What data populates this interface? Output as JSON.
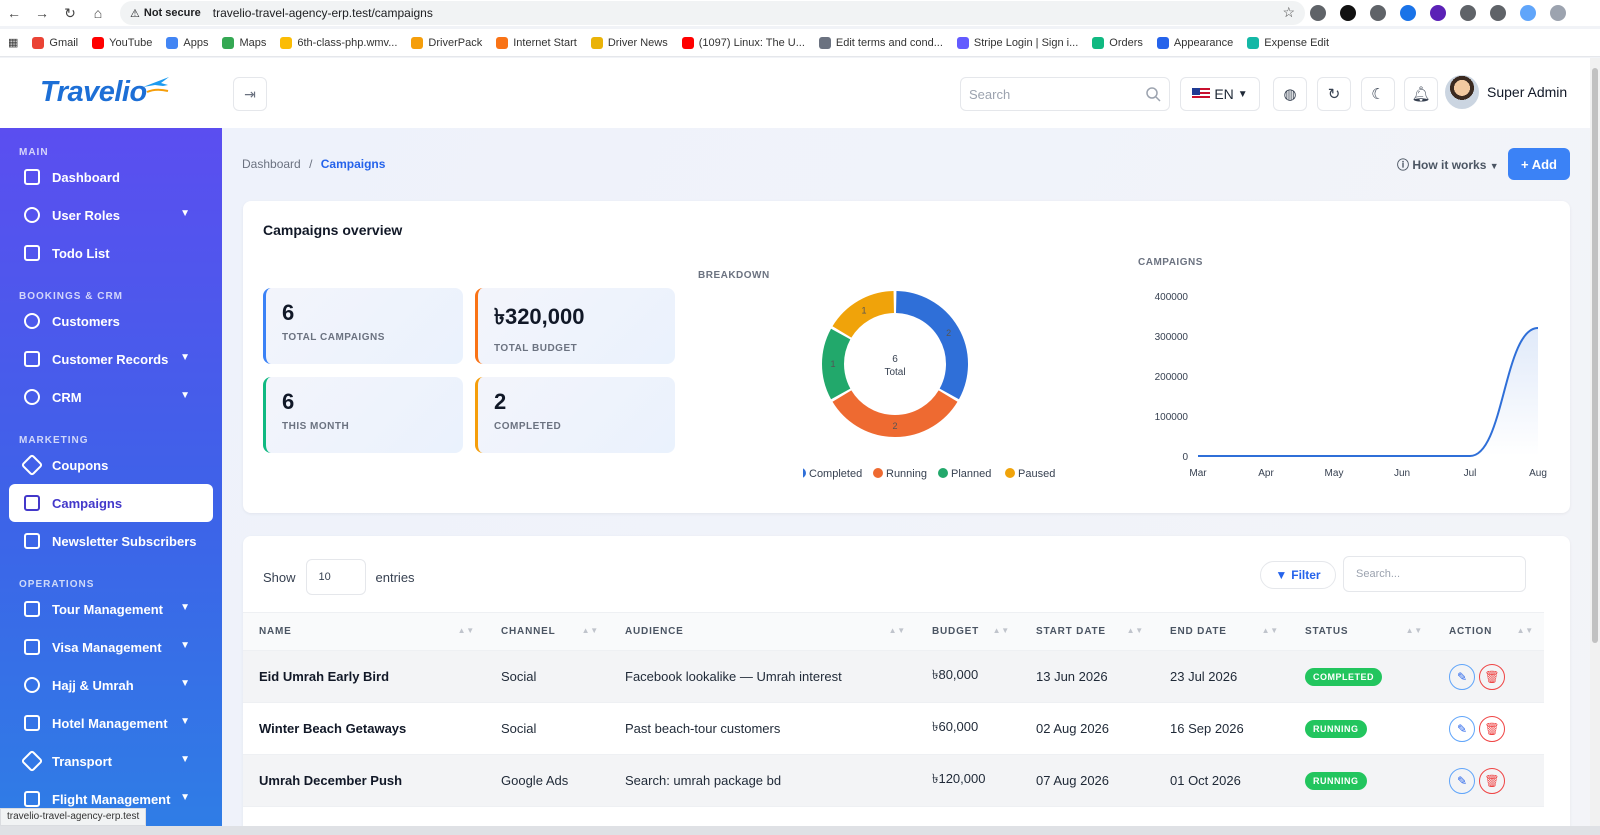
{
  "browser": {
    "security": "Not secure",
    "url": "travelio-travel-agency-erp.test/campaigns",
    "bookmarks": [
      "Gmail",
      "YouTube",
      "Apps",
      "Maps",
      "6th-class-php.wmv...",
      "DriverPack",
      "Internet Start",
      "Driver News",
      "(1097) Linux: The U...",
      "Edit terms and cond...",
      "Stripe Login | Sign i...",
      "Orders",
      "Appearance",
      "Expense Edit"
    ],
    "status_url": "travelio-travel-agency-erp.test"
  },
  "header": {
    "logo": "Travelio",
    "search_placeholder": "Search",
    "lang": "EN",
    "user_name": "Super Admin"
  },
  "sidebar": {
    "sections": [
      {
        "label": "MAIN",
        "items": [
          {
            "label": "Dashboard",
            "icon": "chart-icon",
            "chevron": false
          },
          {
            "label": "User Roles",
            "icon": "user-icon",
            "chevron": true
          },
          {
            "label": "Todo List",
            "icon": "list-icon",
            "chevron": false
          }
        ]
      },
      {
        "label": "BOOKINGS & CRM",
        "items": [
          {
            "label": "Customers",
            "icon": "user-icon",
            "chevron": false
          },
          {
            "label": "Customer Records",
            "icon": "folder-icon",
            "chevron": true
          },
          {
            "label": "CRM",
            "icon": "chat-icon",
            "chevron": true
          }
        ]
      },
      {
        "label": "MARKETING",
        "items": [
          {
            "label": "Coupons",
            "icon": "tag-icon",
            "chevron": false
          },
          {
            "label": "Campaigns",
            "icon": "megaphone-icon",
            "chevron": false,
            "active": true
          },
          {
            "label": "Newsletter Subscribers",
            "icon": "mail-icon",
            "chevron": false
          }
        ]
      },
      {
        "label": "OPERATIONS",
        "items": [
          {
            "label": "Tour Management",
            "icon": "map-icon",
            "chevron": true
          },
          {
            "label": "Visa Management",
            "icon": "document-icon",
            "chevron": true
          },
          {
            "label": "Hajj & Umrah",
            "icon": "compass-icon",
            "chevron": true
          },
          {
            "label": "Hotel Management",
            "icon": "building-icon",
            "chevron": true
          },
          {
            "label": "Transport",
            "icon": "send-icon",
            "chevron": true
          },
          {
            "label": "Flight Management",
            "icon": "plane-icon",
            "chevron": true
          }
        ]
      }
    ]
  },
  "breadcrumb": {
    "home": "Dashboard",
    "sep": "/",
    "current": "Campaigns"
  },
  "actions": {
    "how_it_works": "How it works",
    "add": "+ Add"
  },
  "overview": {
    "title": "Campaigns overview",
    "stats": [
      {
        "value": "6",
        "label": "TOTAL CAMPAIGNS",
        "color": "#3b82f6"
      },
      {
        "value": "৳320,000",
        "label": "TOTAL BUDGET",
        "color": "#f97316"
      },
      {
        "value": "6",
        "label": "THIS MONTH",
        "color": "#10b981"
      },
      {
        "value": "2",
        "label": "COMPLETED",
        "color": "#f59e0b"
      }
    ],
    "breakdown_label": "BREAKDOWN",
    "campaigns_label": "CAMPAIGNS"
  },
  "chart_data": [
    {
      "type": "pie",
      "title": "BREAKDOWN",
      "categories": [
        "Completed",
        "Running",
        "Planned",
        "Paused"
      ],
      "values": [
        2,
        2,
        1,
        1
      ],
      "colors": [
        "#2f6fd8",
        "#ee6a31",
        "#22a86b",
        "#f0a30a"
      ],
      "center_value": "6",
      "center_label": "Total",
      "legend": "bottom"
    },
    {
      "type": "area",
      "title": "CAMPAIGNS",
      "categories": [
        "Mar",
        "Apr",
        "May",
        "Jun",
        "Jul",
        "Aug"
      ],
      "values": [
        0,
        0,
        0,
        0,
        0,
        320000
      ],
      "yticks": [
        0,
        100000,
        200000,
        300000,
        400000
      ],
      "ylim": [
        0,
        400000
      ],
      "color": "#2f6fd8",
      "grid": false
    }
  ],
  "table": {
    "show_label": "Show",
    "entries_value": "10",
    "entries_label": "entries",
    "filter_label": "Filter",
    "search_placeholder": "Search...",
    "columns": [
      "NAME",
      "CHANNEL",
      "AUDIENCE",
      "BUDGET",
      "START DATE",
      "END DATE",
      "STATUS",
      "ACTION"
    ],
    "rows": [
      {
        "name": "Eid Umrah Early Bird",
        "channel": "Social",
        "audience": "Facebook lookalike — Umrah interest",
        "budget": "৳80,000",
        "start": "13 Jun 2026",
        "end": "23 Jul 2026",
        "status": "COMPLETED"
      },
      {
        "name": "Winter Beach Getaways",
        "channel": "Social",
        "audience": "Past beach-tour customers",
        "budget": "৳60,000",
        "start": "02 Aug 2026",
        "end": "16 Sep 2026",
        "status": "RUNNING"
      },
      {
        "name": "Umrah December Push",
        "channel": "Google Ads",
        "audience": "Search: umrah package bd",
        "budget": "৳120,000",
        "start": "07 Aug 2026",
        "end": "01 Oct 2026",
        "status": "RUNNING"
      }
    ]
  }
}
